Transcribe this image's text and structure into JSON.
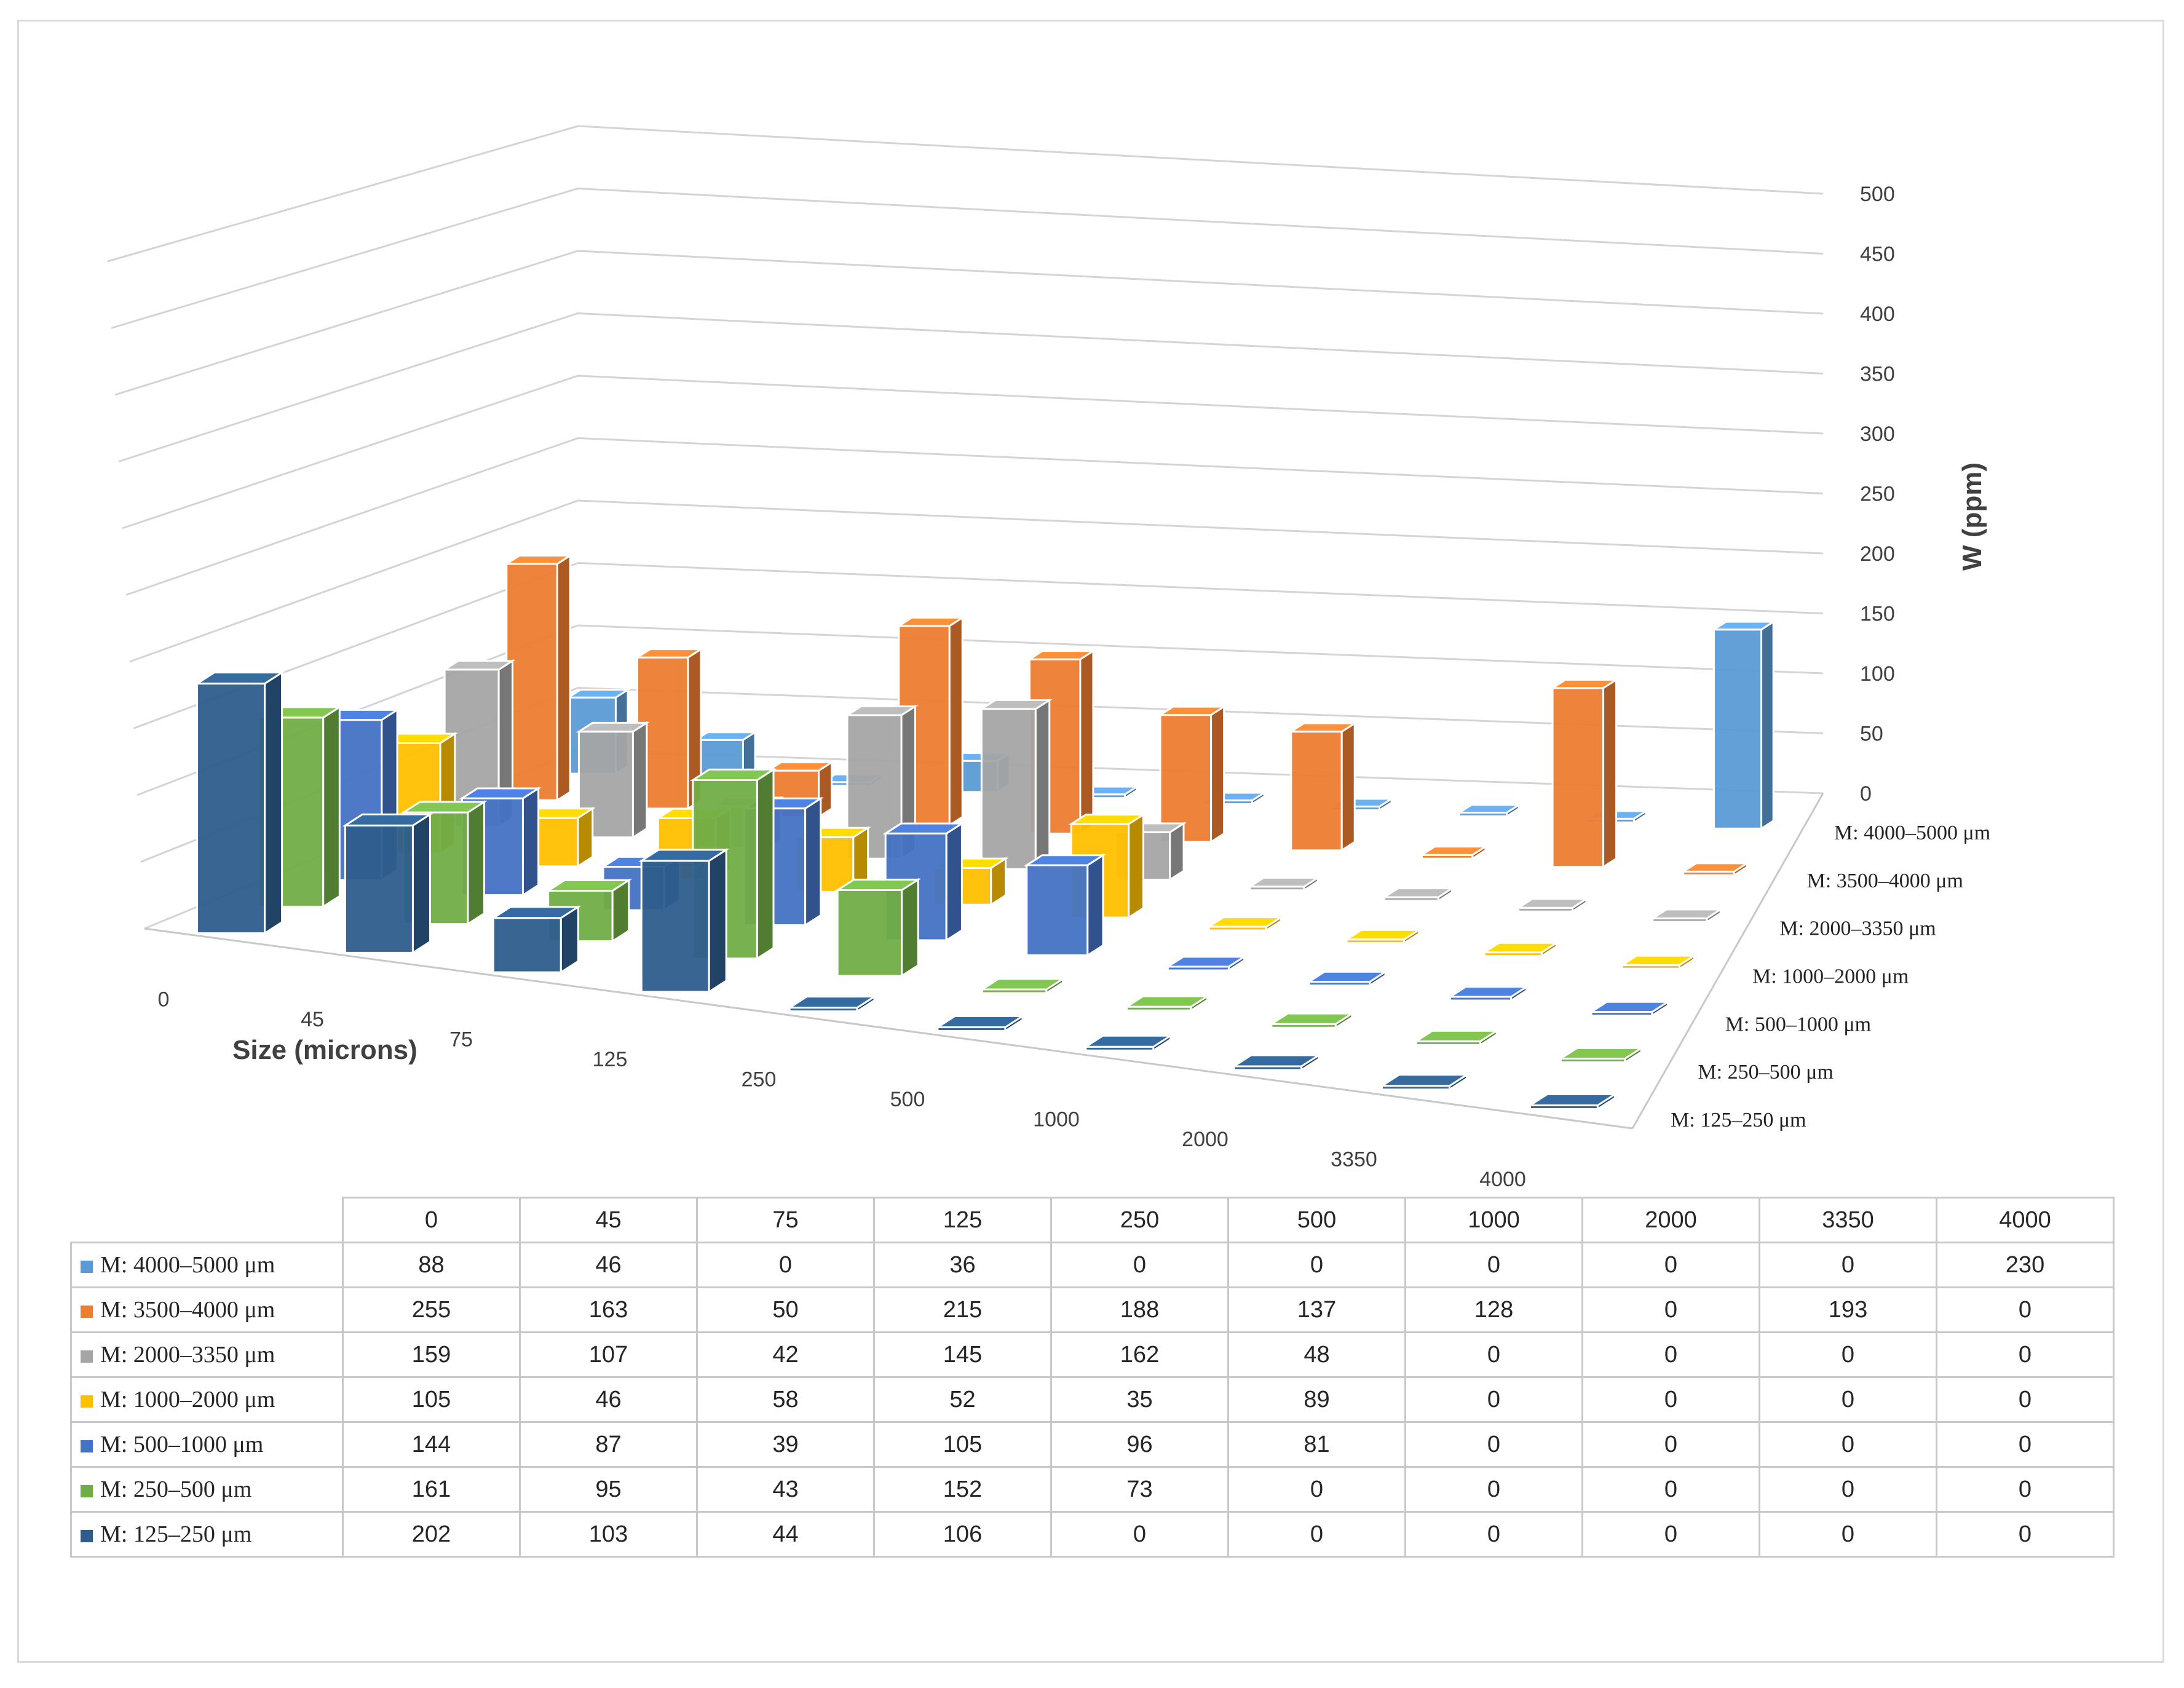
{
  "chart_data": {
    "type": "bar",
    "subtype": "3d-column",
    "title": "",
    "xlabel": "Size (microns)",
    "ylabel": "W (ppm)",
    "ylim": [
      0,
      500
    ],
    "yticks": [
      "0",
      "50",
      "100",
      "150",
      "200",
      "250",
      "300",
      "350",
      "400",
      "450",
      "500"
    ],
    "categories": [
      "0",
      "45",
      "75",
      "125",
      "250",
      "500",
      "1000",
      "2000",
      "3350",
      "4000"
    ],
    "series": [
      {
        "name": "M: 125–250 μm",
        "color": "#2e5d8c",
        "values": [
          202,
          103,
          44,
          106,
          0,
          0,
          0,
          0,
          0,
          0
        ]
      },
      {
        "name": "M: 250–500 μm",
        "color": "#70ad47",
        "values": [
          161,
          95,
          43,
          152,
          73,
          0,
          0,
          0,
          0,
          0
        ]
      },
      {
        "name": "M: 500–1000 μm",
        "color": "#4472c4",
        "values": [
          144,
          87,
          39,
          105,
          96,
          81,
          0,
          0,
          0,
          0
        ]
      },
      {
        "name": "M: 1000–2000 μm",
        "color": "#ffc000",
        "values": [
          105,
          46,
          58,
          52,
          35,
          89,
          0,
          0,
          0,
          0
        ]
      },
      {
        "name": "M: 2000–3350 μm",
        "color": "#a5a5a5",
        "values": [
          159,
          107,
          42,
          145,
          162,
          48,
          0,
          0,
          0,
          0
        ]
      },
      {
        "name": "M: 3500–4000 μm",
        "color": "#ed7d31",
        "values": [
          255,
          163,
          50,
          215,
          188,
          137,
          128,
          0,
          193,
          0
        ]
      },
      {
        "name": "M: 4000–5000 μm",
        "color": "#5b9bd5",
        "values": [
          88,
          46,
          0,
          36,
          0,
          0,
          0,
          0,
          0,
          230
        ]
      }
    ],
    "grid": true,
    "legend": "table-below"
  },
  "table": {
    "series_order": [
      6,
      5,
      4,
      3,
      2,
      1,
      0
    ]
  }
}
